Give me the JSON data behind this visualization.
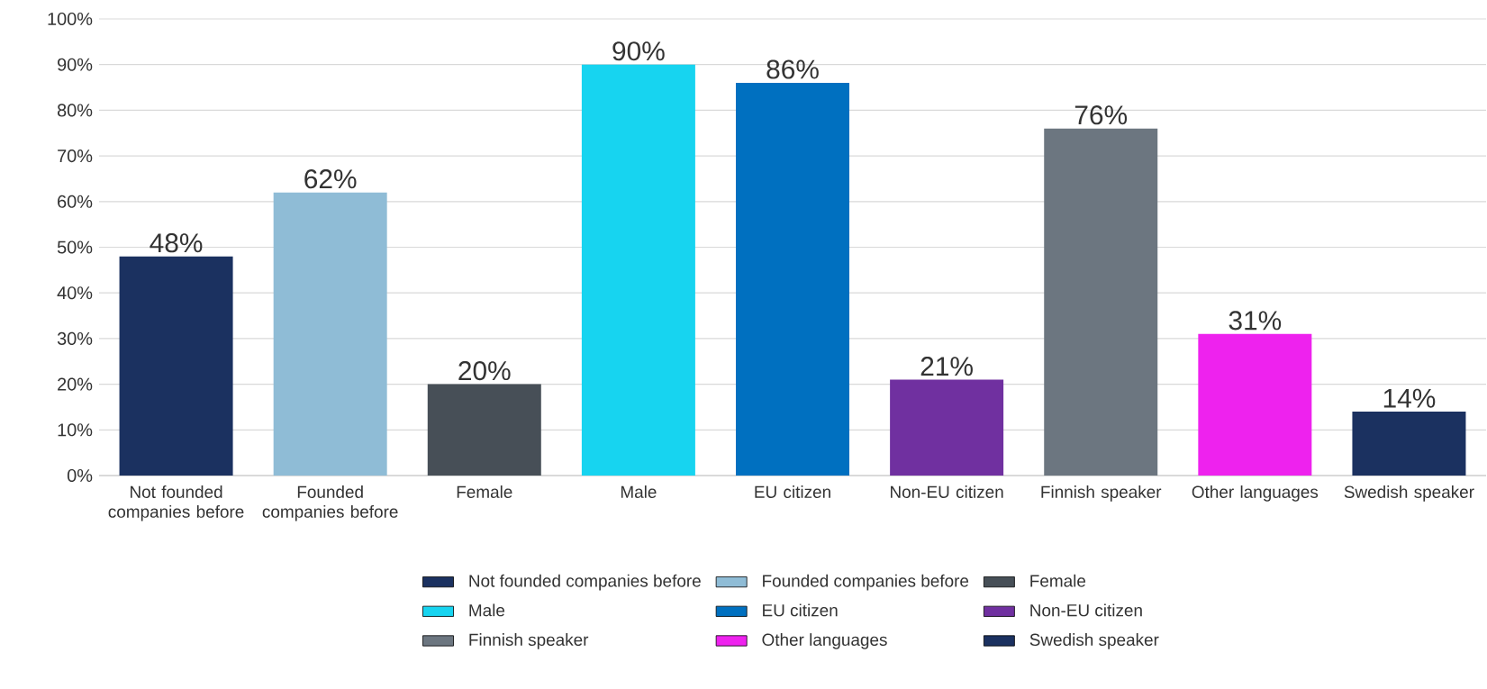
{
  "chart_data": {
    "type": "bar",
    "categories": [
      "Not founded companies before",
      "Founded companies before",
      "Female",
      "Male",
      "EU citizen",
      "Non-EU citizen",
      "Finnish speaker",
      "Other languages",
      "Swedish speaker"
    ],
    "series": [
      {
        "name": "Not founded companies before",
        "color": "#1b3160",
        "values": [
          48,
          null,
          null,
          null,
          null,
          null,
          null,
          null,
          null
        ],
        "value_labels": [
          "48%",
          null,
          null,
          null,
          null,
          null,
          null,
          null,
          null
        ]
      },
      {
        "name": "Founded companies before",
        "color": "#8fbcd6",
        "values": [
          null,
          62,
          null,
          null,
          null,
          null,
          null,
          null,
          null
        ],
        "value_labels": [
          null,
          "62%",
          null,
          null,
          null,
          null,
          null,
          null,
          null
        ]
      },
      {
        "name": "Female",
        "color": "#474f57",
        "values": [
          null,
          null,
          20,
          null,
          null,
          null,
          null,
          null,
          null
        ],
        "value_labels": [
          null,
          null,
          "20%",
          null,
          null,
          null,
          null,
          null,
          null
        ]
      },
      {
        "name": "Male",
        "color": "#17d4f0",
        "values": [
          null,
          null,
          null,
          90,
          null,
          null,
          null,
          null,
          null
        ],
        "value_labels": [
          null,
          null,
          null,
          "90%",
          null,
          null,
          null,
          null,
          null
        ]
      },
      {
        "name": "EU citizen",
        "color": "#0070c0",
        "values": [
          null,
          null,
          null,
          null,
          86,
          null,
          null,
          null,
          null
        ],
        "value_labels": [
          null,
          null,
          null,
          null,
          "86%",
          null,
          null,
          null,
          null
        ]
      },
      {
        "name": "Non-EU citizen",
        "color": "#7030a0",
        "values": [
          null,
          null,
          null,
          null,
          null,
          21,
          null,
          null,
          null
        ],
        "value_labels": [
          null,
          null,
          null,
          null,
          null,
          "21%",
          null,
          null,
          null
        ]
      },
      {
        "name": "Finnish speaker",
        "color": "#6c7680",
        "values": [
          null,
          null,
          null,
          null,
          null,
          null,
          76,
          null,
          null
        ],
        "value_labels": [
          null,
          null,
          null,
          null,
          null,
          null,
          "76%",
          null,
          null
        ]
      },
      {
        "name": "Other languages",
        "color": "#ee22ee",
        "values": [
          null,
          null,
          null,
          null,
          null,
          null,
          null,
          31,
          null
        ],
        "value_labels": [
          null,
          null,
          null,
          null,
          null,
          null,
          null,
          "31%",
          null
        ]
      },
      {
        "name": "Swedish speaker",
        "color": "#1b3160",
        "values": [
          null,
          null,
          null,
          null,
          null,
          null,
          null,
          null,
          14
        ],
        "value_labels": [
          null,
          null,
          null,
          null,
          null,
          null,
          null,
          null,
          "14%"
        ]
      }
    ],
    "ylim": [
      0,
      100
    ],
    "yticks": [
      {
        "value": 0,
        "label": "0%"
      },
      {
        "value": 10,
        "label": "10%"
      },
      {
        "value": 20,
        "label": "20%"
      },
      {
        "value": 30,
        "label": "30%"
      },
      {
        "value": 40,
        "label": "40%"
      },
      {
        "value": 50,
        "label": "50%"
      },
      {
        "value": 60,
        "label": "60%"
      },
      {
        "value": 70,
        "label": "70%"
      },
      {
        "value": 80,
        "label": "80%"
      },
      {
        "value": 90,
        "label": "90%"
      },
      {
        "value": 100,
        "label": "100%"
      }
    ],
    "grid": "y",
    "legend": "bottom"
  }
}
